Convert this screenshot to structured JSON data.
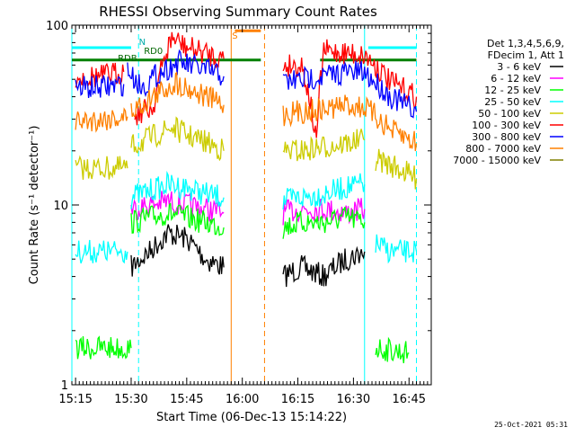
{
  "chart_data": {
    "type": "line",
    "title": "RHESSI Observing Summary Count Rates",
    "xlabel": "Start Time (06-Dec-13 15:14:22)",
    "ylabel": "Count Rate (s⁻¹ detector⁻¹)",
    "x_scale": "time",
    "y_scale": "log",
    "xlim": [
      "15:14",
      "16:51"
    ],
    "ylim": [
      1,
      100
    ],
    "x_ticks": [
      "15:15",
      "15:30",
      "15:45",
      "16:00",
      "16:15",
      "16:30",
      "16:45"
    ],
    "y_ticks": [
      1,
      10,
      100
    ],
    "footer": "25-Oct-2021 05:31",
    "legend": {
      "placement": "right",
      "header": [
        "Det 1,3,4,5,6,9,",
        "FDecim 1, Att 1"
      ],
      "entries": [
        {
          "label": "3 - 6 keV",
          "color": "#000000"
        },
        {
          "label": "6 - 12 keV",
          "color": "#ff00ff"
        },
        {
          "label": "12 - 25 keV",
          "color": "#00ff00"
        },
        {
          "label": "25 - 50 keV",
          "color": "#00ffff"
        },
        {
          "label": "50 - 100 keV",
          "color": "#cccc00"
        },
        {
          "label": "100 - 300 keV",
          "color": "#ff0000"
        },
        {
          "label": "300 - 800 keV",
          "color": "#0000ff"
        },
        {
          "label": "800 - 7000 keV",
          "color": "#ff8000"
        },
        {
          "label": "7000 - 15000 keV",
          "color": "#808000"
        }
      ]
    },
    "annotations": [
      {
        "text": "N",
        "x": "15:33"
      },
      {
        "text": "RD0",
        "x": "15:36"
      },
      {
        "text": "RDB",
        "x": "15:29"
      },
      {
        "text": "S",
        "x": "15:58"
      }
    ],
    "series": [
      {
        "name": "3 - 6 keV",
        "color": "#000000",
        "segments": [
          {
            "x": [
              "15:30",
              "15:35",
              "15:40",
              "15:45",
              "15:50",
              "15:55"
            ],
            "y": [
              4.5,
              5.5,
              7.0,
              6.5,
              5.0,
              4.5
            ]
          },
          {
            "x": [
              "16:11",
              "16:16",
              "16:22",
              "16:28",
              "16:33"
            ],
            "y": [
              4.0,
              4.5,
              4.0,
              5.0,
              5.5
            ]
          }
        ]
      },
      {
        "name": "6 - 12 keV",
        "color": "#ff00ff",
        "segments": [
          {
            "x": [
              "15:30",
              "15:35",
              "15:40",
              "15:45",
              "15:50",
              "15:55"
            ],
            "y": [
              9.5,
              10.0,
              10.5,
              10.0,
              9.5,
              9.0
            ]
          },
          {
            "x": [
              "16:11",
              "16:16",
              "16:22",
              "16:28",
              "16:33"
            ],
            "y": [
              9.0,
              9.5,
              9.5,
              9.0,
              9.5
            ]
          }
        ]
      },
      {
        "name": "12 - 25 keV",
        "color": "#00ff00",
        "segments": [
          {
            "x": [
              "15:15",
              "15:30"
            ],
            "y": [
              1.6,
              1.6
            ]
          },
          {
            "x": [
              "15:30",
              "15:35",
              "15:40",
              "15:45",
              "15:50",
              "15:55"
            ],
            "y": [
              8.0,
              8.5,
              9.0,
              8.5,
              8.0,
              7.5
            ]
          },
          {
            "x": [
              "16:11",
              "16:16",
              "16:22",
              "16:28",
              "16:33"
            ],
            "y": [
              7.5,
              8.0,
              8.0,
              8.5,
              8.0
            ]
          },
          {
            "x": [
              "16:36",
              "16:45"
            ],
            "y": [
              1.6,
              1.5
            ]
          }
        ]
      },
      {
        "name": "25 - 50 keV",
        "color": "#00ffff",
        "segments": [
          {
            "x": [
              "15:15",
              "15:22",
              "15:29"
            ],
            "y": [
              5.5,
              5.5,
              5.5
            ]
          },
          {
            "x": [
              "15:30",
              "15:35",
              "15:40",
              "15:45",
              "15:50",
              "15:55"
            ],
            "y": [
              11.0,
              12.0,
              13.0,
              12.5,
              11.5,
              11.0
            ]
          },
          {
            "x": [
              "16:11",
              "16:16",
              "16:22",
              "16:28",
              "16:33"
            ],
            "y": [
              10.5,
              11.0,
              11.5,
              12.5,
              13.0
            ]
          },
          {
            "x": [
              "16:36",
              "16:40",
              "16:45",
              "16:47"
            ],
            "y": [
              6.0,
              5.5,
              5.5,
              5.5
            ]
          }
        ]
      },
      {
        "name": "50 - 100 keV",
        "color": "#cccc00",
        "segments": [
          {
            "x": [
              "15:15",
              "15:22",
              "15:29"
            ],
            "y": [
              16.0,
              16.0,
              16.0
            ]
          },
          {
            "x": [
              "15:30",
              "15:36",
              "15:41",
              "15:46",
              "15:51",
              "15:55"
            ],
            "y": [
              21.0,
              24.0,
              27.0,
              24.0,
              22.0,
              20.0
            ]
          },
          {
            "x": [
              "16:11",
              "16:16",
              "16:22",
              "16:28",
              "16:33"
            ],
            "y": [
              20.0,
              20.0,
              21.0,
              22.0,
              23.0
            ]
          },
          {
            "x": [
              "16:36",
              "16:42",
              "16:47"
            ],
            "y": [
              18.0,
              16.0,
              14.0
            ]
          }
        ]
      },
      {
        "name": "100 - 300 keV",
        "color": "#ff0000",
        "segments": [
          {
            "x": [
              "15:15",
              "15:22",
              "15:28"
            ],
            "y": [
              51.0,
              52.0,
              55.0
            ]
          },
          {
            "x": [
              "15:31",
              "15:36",
              "15:41",
              "15:45",
              "15:50",
              "15:55"
            ],
            "y": [
              32.0,
              35.0,
              85.0,
              75.0,
              70.0,
              65.0
            ]
          },
          {
            "x": [
              "16:11",
              "16:16",
              "16:20",
              "16:22",
              "16:28",
              "16:33",
              "16:40",
              "16:47"
            ],
            "y": [
              60.0,
              60.0,
              21.0,
              72.0,
              70.0,
              68.0,
              48.0,
              40.0
            ]
          }
        ]
      },
      {
        "name": "300 - 800 keV",
        "color": "#0000ff",
        "segments": [
          {
            "x": [
              "15:15",
              "15:22",
              "15:28"
            ],
            "y": [
              45.0,
              45.0,
              47.0
            ]
          },
          {
            "x": [
              "15:29",
              "15:33",
              "15:38",
              "15:43",
              "15:48",
              "15:53",
              "15:55"
            ],
            "y": [
              55.0,
              45.0,
              55.0,
              62.0,
              58.0,
              54.0,
              52.0
            ]
          },
          {
            "x": [
              "16:11",
              "16:16",
              "16:22",
              "16:28",
              "16:33",
              "16:40",
              "16:47"
            ],
            "y": [
              48.0,
              50.0,
              52.0,
              55.0,
              54.0,
              40.0,
              33.0
            ]
          }
        ]
      },
      {
        "name": "800 - 7000 keV",
        "color": "#ff8000",
        "segments": [
          {
            "x": [
              "15:15",
              "15:22",
              "15:29"
            ],
            "y": [
              29.0,
              30.0,
              31.0
            ]
          },
          {
            "x": [
              "15:30",
              "15:36",
              "15:42",
              "15:48",
              "15:55"
            ],
            "y": [
              33.0,
              40.0,
              48.0,
              42.0,
              36.0
            ]
          },
          {
            "x": [
              "16:11",
              "16:16",
              "16:22",
              "16:28",
              "16:33",
              "16:40",
              "16:47"
            ],
            "y": [
              32.0,
              33.0,
              34.0,
              36.0,
              35.0,
              26.0,
              22.0
            ]
          }
        ]
      },
      {
        "name": "7000 - 15000 keV",
        "color": "#808000",
        "segments": []
      }
    ],
    "overlay_lines": [
      {
        "color": "#00ffff",
        "kind": "solid",
        "segments": [
          [
            "15:14",
            "15:30",
            75
          ],
          [
            "16:34",
            "16:47",
            75
          ]
        ]
      },
      {
        "color": "#008000",
        "kind": "solid",
        "segments": [
          [
            "15:14",
            "16:05",
            64
          ],
          [
            "16:21",
            "16:47",
            64
          ]
        ]
      },
      {
        "color": "#ff8000",
        "kind": "solid",
        "segments": [
          [
            "15:58",
            "16:05",
            93
          ]
        ]
      }
    ],
    "vertical_markers": [
      {
        "x": "15:14",
        "color": "#00ffff",
        "style": "solid"
      },
      {
        "x": "15:32",
        "color": "#00ffff",
        "style": "dashed"
      },
      {
        "x": "16:33",
        "color": "#00ffff",
        "style": "solid"
      },
      {
        "x": "16:47",
        "color": "#00ffff",
        "style": "dashed"
      },
      {
        "x": "15:57",
        "color": "#ff8000",
        "style": "solid"
      },
      {
        "x": "16:06",
        "color": "#ff8000",
        "style": "dashed"
      }
    ]
  }
}
